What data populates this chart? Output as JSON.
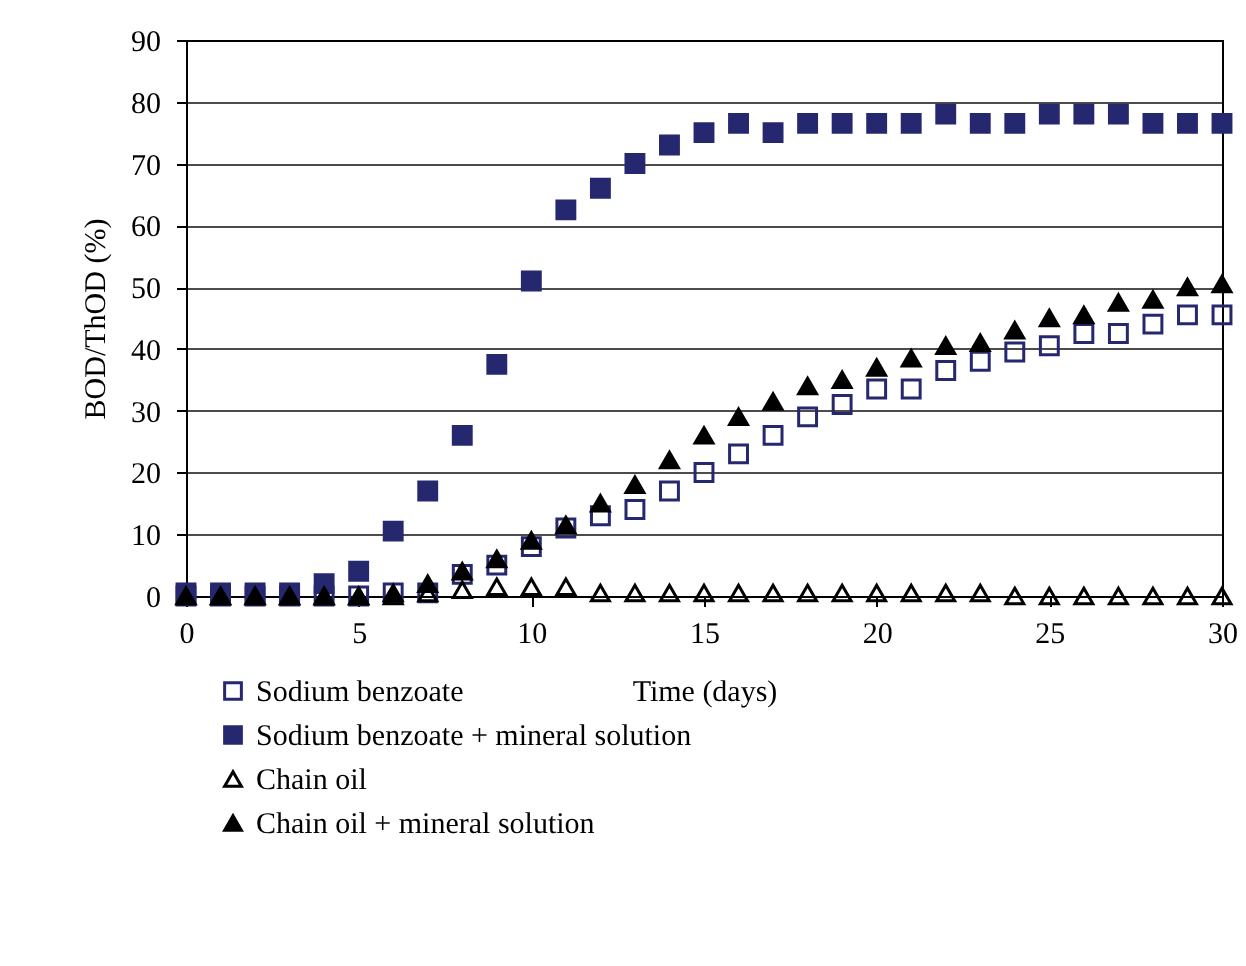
{
  "chart_data": {
    "type": "scatter",
    "xlabel": "Time (days)",
    "ylabel": "BOD/ThOD (%)",
    "x": [
      0,
      1,
      2,
      3,
      4,
      5,
      6,
      7,
      8,
      9,
      10,
      11,
      12,
      13,
      14,
      15,
      16,
      17,
      18,
      19,
      20,
      21,
      22,
      23,
      24,
      25,
      26,
      27,
      28,
      29,
      30
    ],
    "xlim": [
      0,
      30
    ],
    "xticks": [
      0,
      5,
      10,
      15,
      20,
      25,
      30
    ],
    "ylim": [
      0,
      90
    ],
    "yticks": [
      0,
      10,
      20,
      30,
      40,
      50,
      60,
      70,
      80,
      90
    ],
    "grid": "y",
    "legend": "bottom left",
    "series": [
      {
        "name": "Sodium benzoate",
        "color": "#25276f",
        "marker": "square",
        "values": [
          0,
          0,
          0,
          0,
          0,
          0,
          0.5,
          0.5,
          3.5,
          5,
          8,
          11,
          13,
          14,
          17,
          20,
          23,
          26,
          29,
          31,
          33.5,
          33.5,
          36.5,
          38,
          39.5,
          40.5,
          42.5,
          42.5,
          44,
          45.5,
          45.5
        ]
      },
      {
        "name": "Sodium benzoate + mineral solution",
        "color": "#25276f",
        "marker": "square",
        "values": [
          0.5,
          0.5,
          0.5,
          0.5,
          2,
          4,
          10.5,
          17,
          26,
          37.5,
          51,
          62.5,
          66,
          70,
          73,
          75,
          76.5,
          75,
          76.5,
          76.5,
          76.5,
          76.5,
          78,
          76.5,
          76.5,
          78,
          78,
          78,
          76.5,
          76.5,
          76.5
        ]
      },
      {
        "name": "Chain oil",
        "color": "#000000",
        "marker": "triangle",
        "values": [
          0,
          0,
          0,
          0,
          0,
          0,
          0,
          0.5,
          1,
          1.5,
          1.5,
          1.5,
          0.5,
          0.5,
          0.5,
          0.5,
          0.5,
          0.5,
          0.5,
          0.5,
          0.5,
          0.5,
          0.5,
          0.5,
          0,
          0,
          0,
          0,
          0,
          0,
          0
        ]
      },
      {
        "name": "Chain oil + mineral solution",
        "color": "#000000",
        "marker": "triangle",
        "values": [
          0,
          0,
          0,
          0,
          0,
          0,
          0.5,
          2,
          4,
          6,
          9,
          11.5,
          15,
          18,
          22,
          26,
          29,
          31.5,
          34,
          35,
          37,
          38.5,
          40.5,
          41,
          43,
          45,
          45.5,
          47.5,
          48,
          50,
          50.5
        ]
      }
    ]
  }
}
